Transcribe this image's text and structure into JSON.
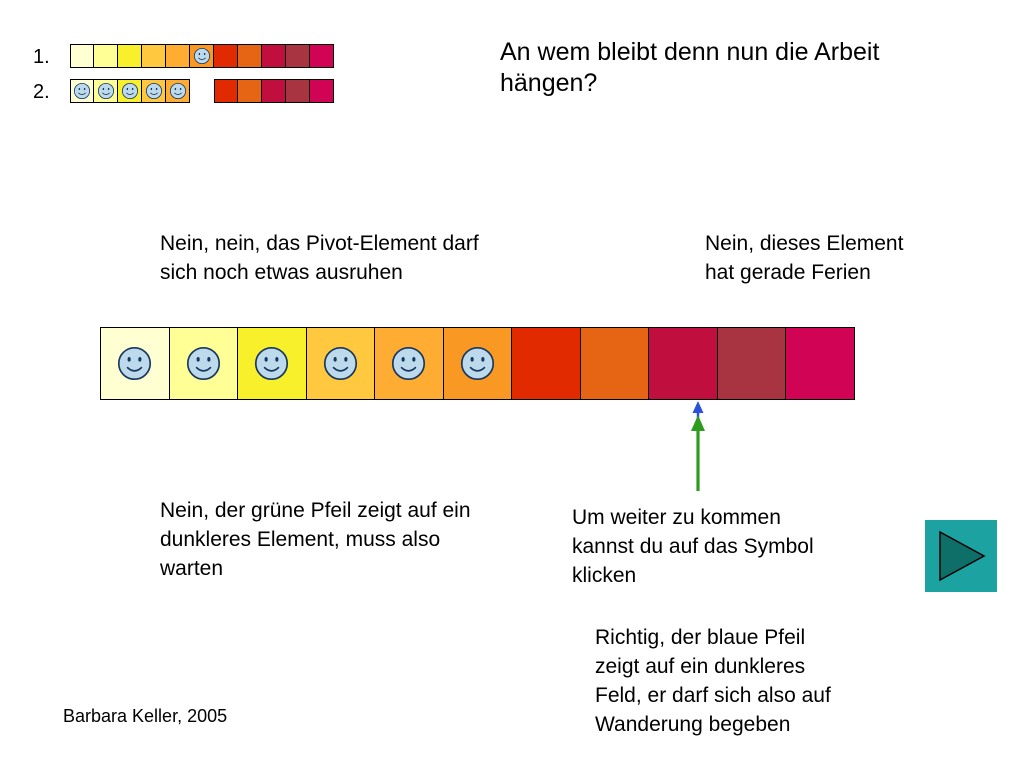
{
  "title": "An wem bleibt denn nun die Arbeit\nhängen?",
  "steps": {
    "label1": "1.",
    "label2": "2."
  },
  "board": {
    "palette": [
      "#FFFFD2",
      "#FFFF96",
      "#F7F02B",
      "#FFC83E",
      "#FFAC33",
      "#F99924",
      "#E22A00",
      "#E56514",
      "#C00E3F",
      "#A83442",
      "#D10355"
    ],
    "main": [
      {
        "i": 0,
        "smiley": true
      },
      {
        "i": 1,
        "smiley": true
      },
      {
        "i": 2,
        "smiley": true
      },
      {
        "i": 3,
        "smiley": true
      },
      {
        "i": 4,
        "smiley": true
      },
      {
        "i": 5,
        "smiley": true
      },
      {
        "i": 6
      },
      {
        "i": 7
      },
      {
        "i": 8
      },
      {
        "i": 9
      },
      {
        "i": 10
      }
    ],
    "mini1": [
      {
        "i": 0
      },
      {
        "i": 1
      },
      {
        "i": 2
      },
      {
        "i": 3
      },
      {
        "i": 4
      },
      {
        "i": 5,
        "smiley": true
      },
      {
        "i": 6
      },
      {
        "i": 7
      },
      {
        "i": 8
      },
      {
        "i": 9
      },
      {
        "i": 10
      }
    ],
    "mini2": [
      {
        "i": 0,
        "smiley": true
      },
      {
        "i": 1,
        "smiley": true
      },
      {
        "i": 2,
        "smiley": true
      },
      {
        "i": 3,
        "smiley": true
      },
      {
        "i": 4,
        "smiley": true
      },
      {
        "empty": true
      },
      {
        "i": 6
      },
      {
        "i": 7
      },
      {
        "i": 8
      },
      {
        "i": 9
      },
      {
        "i": 10
      }
    ]
  },
  "captions": {
    "pivot": "Nein, nein, das Pivot-Element darf\nsich noch etwas ausruhen",
    "ferien": "Nein, dieses Element\nhat gerade Ferien",
    "gruen": "Nein, der grüne Pfeil zeigt auf ein\ndunkleres Element, muss also\nwarten",
    "weiter": "Um weiter zu kommen\nkannst du auf das Symbol\nklicken",
    "richtig": "Richtig, der blaue Pfeil\nzeigt auf ein dunkleres\nFeld, er darf sich also auf\nWanderung begeben"
  },
  "footer": "Barbara Keller, 2005",
  "colors": {
    "green_arrow": "#2E9B1E",
    "blue_arrow": "#2B52D8",
    "button_bg": "#1CA2A0",
    "button_triangle": "#0E6F68",
    "smiley_face": "#BDDAEC",
    "smiley_line": "#17375E"
  }
}
